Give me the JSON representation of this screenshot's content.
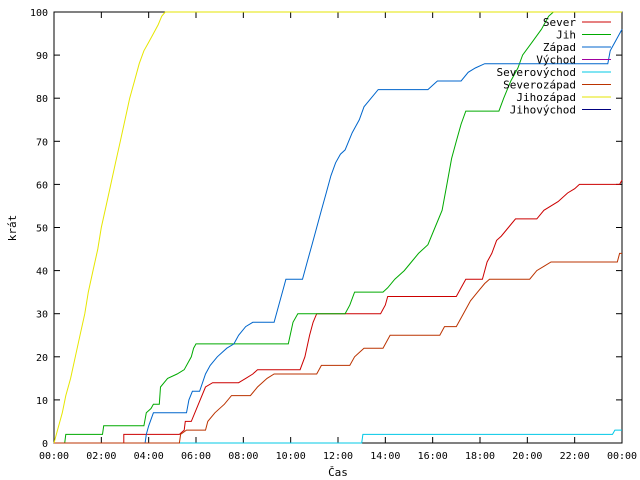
{
  "chart_data": {
    "type": "line",
    "title": "",
    "xlabel": "Čas",
    "ylabel": "krát",
    "xlim": [
      0,
      24
    ],
    "ylim": [
      0,
      100
    ],
    "x_ticks": [
      0,
      2,
      4,
      6,
      8,
      10,
      12,
      14,
      16,
      18,
      20,
      22,
      24
    ],
    "x_tick_labels": [
      "00:00",
      "02:00",
      "04:00",
      "06:00",
      "08:00",
      "10:00",
      "12:00",
      "14:00",
      "16:00",
      "18:00",
      "20:00",
      "22:00",
      "00:00"
    ],
    "y_ticks": [
      0,
      10,
      20,
      30,
      40,
      50,
      60,
      70,
      80,
      90,
      100
    ],
    "y_tick_labels": [
      "0",
      "10",
      "20",
      "30",
      "40",
      "50",
      "60",
      "70",
      "80",
      "90",
      "100"
    ],
    "grid": false,
    "legend": "top-right",
    "series": [
      {
        "name": "Sever",
        "color": "#cc0000",
        "points": [
          [
            0,
            0
          ],
          [
            2.95,
            0
          ],
          [
            2.95,
            2
          ],
          [
            5.3,
            2
          ],
          [
            5.5,
            3
          ],
          [
            5.55,
            5
          ],
          [
            5.8,
            5
          ],
          [
            6.1,
            9
          ],
          [
            6.4,
            13
          ],
          [
            6.7,
            14
          ],
          [
            7.8,
            14
          ],
          [
            8.1,
            15
          ],
          [
            8.4,
            16
          ],
          [
            8.6,
            17
          ],
          [
            10.4,
            17
          ],
          [
            10.6,
            20
          ],
          [
            10.8,
            25
          ],
          [
            10.95,
            28
          ],
          [
            11.1,
            30
          ],
          [
            13.8,
            30
          ],
          [
            14.0,
            32
          ],
          [
            14.1,
            34
          ],
          [
            17.0,
            34
          ],
          [
            17.2,
            36
          ],
          [
            17.4,
            38
          ],
          [
            18.1,
            38
          ],
          [
            18.3,
            42
          ],
          [
            18.5,
            44
          ],
          [
            18.7,
            47
          ],
          [
            18.9,
            48
          ],
          [
            19.2,
            50
          ],
          [
            19.5,
            52
          ],
          [
            20.4,
            52
          ],
          [
            20.7,
            54
          ],
          [
            21.3,
            56
          ],
          [
            21.7,
            58
          ],
          [
            22.0,
            59
          ],
          [
            22.2,
            60
          ],
          [
            23.9,
            60
          ],
          [
            24.0,
            61
          ]
        ]
      },
      {
        "name": "Jih",
        "color": "#00aa00",
        "points": [
          [
            0,
            0
          ],
          [
            0.45,
            0
          ],
          [
            0.5,
            2
          ],
          [
            2.05,
            2
          ],
          [
            2.1,
            4
          ],
          [
            3.8,
            4
          ],
          [
            3.9,
            7
          ],
          [
            4.1,
            8
          ],
          [
            4.2,
            9
          ],
          [
            4.45,
            9
          ],
          [
            4.5,
            13
          ],
          [
            4.8,
            15
          ],
          [
            5.2,
            16
          ],
          [
            5.5,
            17
          ],
          [
            5.8,
            20
          ],
          [
            5.9,
            22
          ],
          [
            6.0,
            23
          ],
          [
            9.9,
            23
          ],
          [
            10.1,
            28
          ],
          [
            10.3,
            30
          ],
          [
            12.3,
            30
          ],
          [
            12.5,
            32
          ],
          [
            12.7,
            35
          ],
          [
            13.9,
            35
          ],
          [
            14.1,
            36
          ],
          [
            14.4,
            38
          ],
          [
            14.8,
            40
          ],
          [
            15.1,
            42
          ],
          [
            15.4,
            44
          ],
          [
            15.8,
            46
          ],
          [
            16.1,
            50
          ],
          [
            16.4,
            54
          ],
          [
            16.6,
            60
          ],
          [
            16.8,
            66
          ],
          [
            17.0,
            70
          ],
          [
            17.2,
            74
          ],
          [
            17.4,
            77
          ],
          [
            18.8,
            77
          ],
          [
            19.0,
            80
          ],
          [
            19.3,
            84
          ],
          [
            19.6,
            87
          ],
          [
            19.8,
            90
          ],
          [
            20.2,
            93
          ],
          [
            20.6,
            96
          ],
          [
            20.9,
            99
          ],
          [
            21.1,
            100
          ],
          [
            24,
            100
          ]
        ]
      },
      {
        "name": "Západ",
        "color": "#0066cc",
        "points": [
          [
            0,
            0
          ],
          [
            3.85,
            0
          ],
          [
            3.9,
            2
          ],
          [
            4.0,
            4
          ],
          [
            4.2,
            7
          ],
          [
            5.6,
            7
          ],
          [
            5.7,
            10
          ],
          [
            5.85,
            12
          ],
          [
            6.15,
            12
          ],
          [
            6.4,
            16
          ],
          [
            6.6,
            18
          ],
          [
            6.9,
            20
          ],
          [
            7.3,
            22
          ],
          [
            7.6,
            23
          ],
          [
            7.8,
            25
          ],
          [
            8.1,
            27
          ],
          [
            8.4,
            28
          ],
          [
            9.3,
            28
          ],
          [
            9.5,
            32
          ],
          [
            9.7,
            36
          ],
          [
            9.8,
            38
          ],
          [
            10.5,
            38
          ],
          [
            10.7,
            42
          ],
          [
            10.9,
            46
          ],
          [
            11.1,
            50
          ],
          [
            11.3,
            54
          ],
          [
            11.5,
            58
          ],
          [
            11.7,
            62
          ],
          [
            11.9,
            65
          ],
          [
            12.1,
            67
          ],
          [
            12.3,
            68
          ],
          [
            12.6,
            72
          ],
          [
            12.9,
            75
          ],
          [
            13.1,
            78
          ],
          [
            13.4,
            80
          ],
          [
            13.7,
            82
          ],
          [
            15.8,
            82
          ],
          [
            16.0,
            83
          ],
          [
            16.2,
            84
          ],
          [
            17.2,
            84
          ],
          [
            17.5,
            86
          ],
          [
            17.8,
            87
          ],
          [
            18.2,
            88
          ],
          [
            23.4,
            88
          ],
          [
            23.5,
            91
          ],
          [
            23.7,
            93
          ],
          [
            24.0,
            96
          ]
        ]
      },
      {
        "name": "Východ",
        "color": "#a000a0",
        "points": []
      },
      {
        "name": "Severovýchod",
        "color": "#00c8e6",
        "points": [
          [
            0,
            0
          ],
          [
            13.0,
            0
          ],
          [
            13.05,
            2
          ],
          [
            23.6,
            2
          ],
          [
            23.7,
            3
          ],
          [
            24,
            3
          ]
        ]
      },
      {
        "name": "Severozápad",
        "color": "#bb3300",
        "points": [
          [
            0,
            0
          ],
          [
            5.3,
            0
          ],
          [
            5.35,
            2
          ],
          [
            5.6,
            3
          ],
          [
            6.4,
            3
          ],
          [
            6.5,
            5
          ],
          [
            6.8,
            7
          ],
          [
            7.2,
            9
          ],
          [
            7.5,
            11
          ],
          [
            8.3,
            11
          ],
          [
            8.6,
            13
          ],
          [
            9.0,
            15
          ],
          [
            9.3,
            16
          ],
          [
            11.1,
            16
          ],
          [
            11.3,
            18
          ],
          [
            12.5,
            18
          ],
          [
            12.7,
            20
          ],
          [
            12.9,
            21
          ],
          [
            13.1,
            22
          ],
          [
            13.9,
            22
          ],
          [
            14.2,
            25
          ],
          [
            16.3,
            25
          ],
          [
            16.5,
            27
          ],
          [
            17.0,
            27
          ],
          [
            17.3,
            30
          ],
          [
            17.6,
            33
          ],
          [
            17.9,
            35
          ],
          [
            18.2,
            37
          ],
          [
            18.4,
            38
          ],
          [
            20.1,
            38
          ],
          [
            20.4,
            40
          ],
          [
            20.7,
            41
          ],
          [
            21.0,
            42
          ],
          [
            23.8,
            42
          ],
          [
            23.9,
            44
          ],
          [
            24.0,
            44
          ]
        ]
      },
      {
        "name": "Jihozápad",
        "color": "#e6e600",
        "points": [
          [
            0,
            0
          ],
          [
            0.15,
            3
          ],
          [
            0.35,
            7
          ],
          [
            0.5,
            11
          ],
          [
            0.7,
            15
          ],
          [
            0.9,
            20
          ],
          [
            1.1,
            25
          ],
          [
            1.3,
            30
          ],
          [
            1.45,
            35
          ],
          [
            1.65,
            40
          ],
          [
            1.85,
            45
          ],
          [
            2.0,
            50
          ],
          [
            2.2,
            55
          ],
          [
            2.4,
            60
          ],
          [
            2.6,
            65
          ],
          [
            2.8,
            70
          ],
          [
            3.0,
            75
          ],
          [
            3.2,
            80
          ],
          [
            3.4,
            84
          ],
          [
            3.6,
            88
          ],
          [
            3.8,
            91
          ],
          [
            4.0,
            93
          ],
          [
            4.2,
            95
          ],
          [
            4.4,
            97
          ],
          [
            4.55,
            99
          ],
          [
            4.7,
            100
          ],
          [
            24,
            100
          ]
        ]
      },
      {
        "name": "Jihovýchod",
        "color": "#000080",
        "points": []
      }
    ]
  }
}
